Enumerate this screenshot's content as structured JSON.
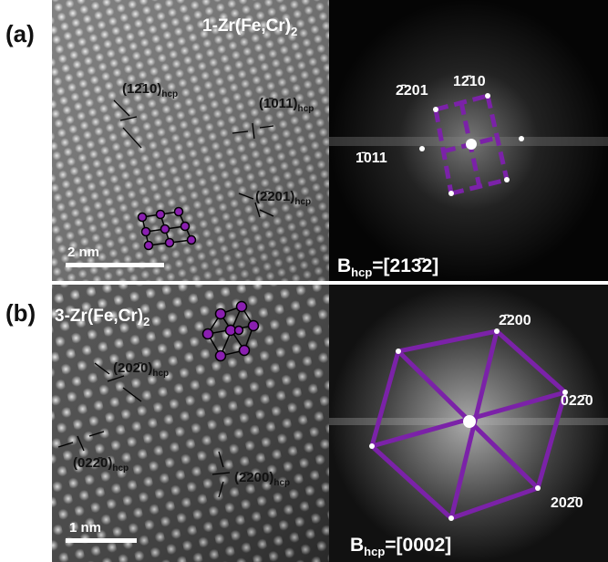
{
  "panels": [
    {
      "label": "(a)",
      "title": {
        "text": "1-Zr(Fe,Cr)",
        "sub": "2"
      },
      "planes": [
        {
          "index": "(12̄10)",
          "sub": "hcp"
        },
        {
          "index": "(1̄011)",
          "sub": "hcp"
        },
        {
          "index": "(2̄201)",
          "sub": "hcp"
        }
      ],
      "scale_bar": "2 nm",
      "fft_spots": [
        "2̄201",
        "12̄10",
        "1̄011"
      ],
      "zone_axis": {
        "text": "B",
        "sub": "hcp",
        "axis": "=[213̄2]"
      }
    },
    {
      "label": "(b)",
      "title": {
        "text": "3-Zr(Fe,Cr)",
        "sub": "2"
      },
      "planes": [
        {
          "index": "(202̄0)",
          "sub": "hcp"
        },
        {
          "index": "(022̄0)",
          "sub": "hcp"
        },
        {
          "index": "(2̄200)",
          "sub": "hcp"
        }
      ],
      "scale_bar": "1 nm",
      "fft_spots": [
        "2̄200",
        "022̄0",
        "202̄0"
      ],
      "zone_axis": {
        "text": "B",
        "sub": "hcp",
        "axis": "=[0002]"
      }
    }
  ]
}
